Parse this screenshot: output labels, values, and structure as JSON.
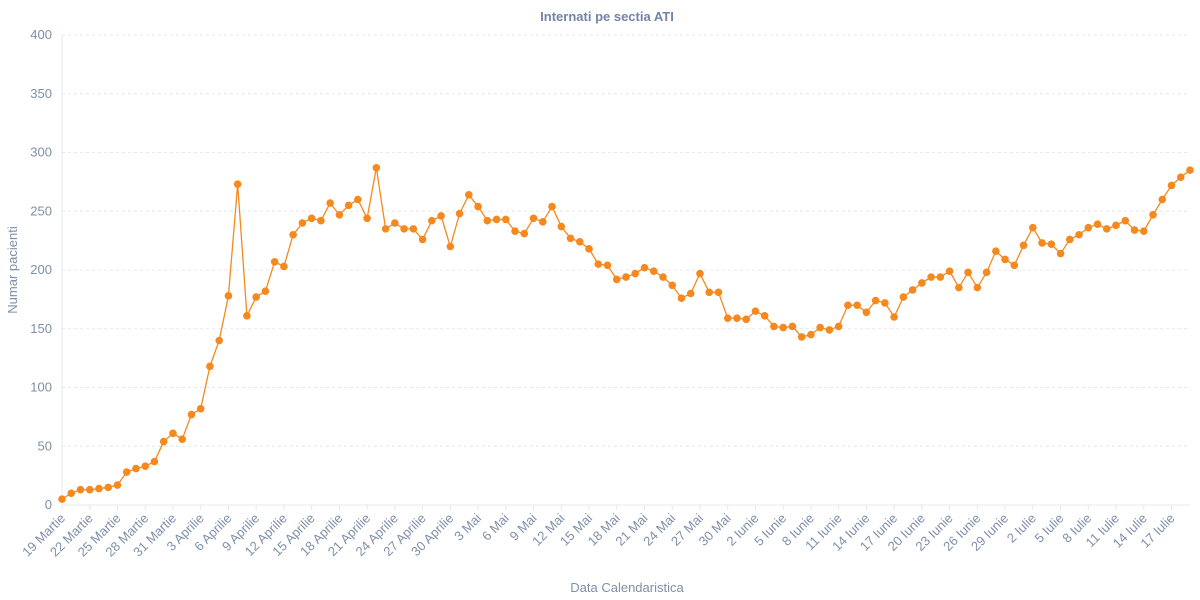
{
  "chart_data": {
    "type": "line",
    "title": "Internati pe sectia ATI",
    "xlabel": "Data Calendaristica",
    "ylabel": "Numar pacienti",
    "ylim": [
      0,
      400
    ],
    "yticks": [
      "0",
      "50",
      "100",
      "150",
      "200",
      "250",
      "300",
      "350",
      "400"
    ],
    "grid": true,
    "x_tick_labels": [
      "19 Martie",
      "22 Martie",
      "25 Martie",
      "28 Martie",
      "31 Martie",
      "3 Aprilie",
      "6 Aprilie",
      "9 Aprilie",
      "12 Aprilie",
      "15 Aprilie",
      "18 Aprilie",
      "21 Aprilie",
      "24 Aprilie",
      "27 Aprilie",
      "30 Aprilie",
      "3 Mai",
      "6 Mai",
      "9 Mai",
      "12 Mai",
      "15 Mai",
      "18 Mai",
      "21 Mai",
      "24 Mai",
      "27 Mai",
      "30 Mai",
      "2 Iunie",
      "5 Iunie",
      "8 Iunie",
      "11 Iunie",
      "14 Iunie",
      "17 Iunie",
      "20 Iunie",
      "23 Iunie",
      "26 Iunie",
      "29 Iunie",
      "2 Iulie",
      "5 Iulie",
      "8 Iulie",
      "11 Iulie",
      "14 Iulie",
      "17 Iulie"
    ],
    "tick_every_days": 3,
    "series": [
      {
        "color": "#f5891e",
        "values": [
          5,
          10,
          13,
          13,
          14,
          15,
          17,
          28,
          31,
          33,
          37,
          54,
          61,
          56,
          77,
          82,
          118,
          140,
          178,
          273,
          161,
          177,
          182,
          207,
          203,
          230,
          240,
          244,
          242,
          257,
          247,
          255,
          260,
          244,
          287,
          235,
          240,
          235,
          235,
          226,
          242,
          246,
          220,
          248,
          264,
          254,
          242,
          243,
          243,
          233,
          231,
          244,
          241,
          254,
          237,
          227,
          224,
          218,
          205,
          204,
          192,
          194,
          197,
          202,
          199,
          194,
          187,
          176,
          180,
          197,
          181,
          181,
          159,
          159,
          158,
          165,
          161,
          152,
          151,
          152,
          143,
          145,
          151,
          149,
          152,
          170,
          170,
          164,
          174,
          172,
          160,
          177,
          183,
          189,
          194,
          194,
          199,
          185,
          198,
          185,
          198,
          216,
          209,
          204,
          221,
          236,
          223,
          222,
          214,
          226,
          230,
          236,
          239,
          235,
          238,
          242,
          234,
          233,
          247,
          260,
          272,
          279,
          285
        ]
      }
    ]
  }
}
